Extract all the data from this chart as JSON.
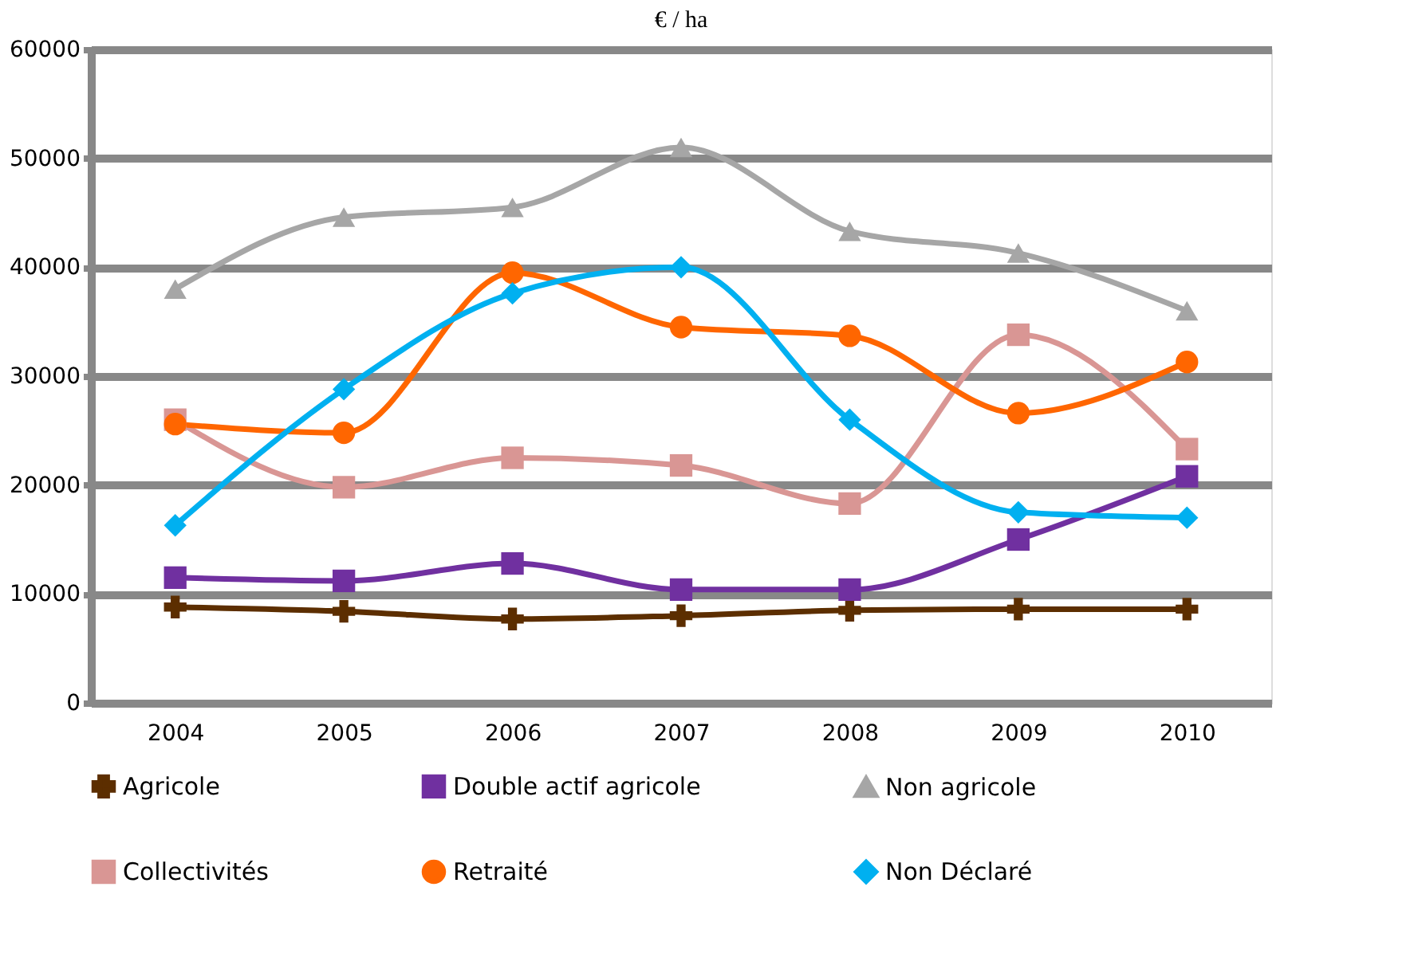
{
  "chart_data": {
    "type": "line",
    "title": "€ / ha",
    "categories": [
      "2004",
      "2005",
      "2006",
      "2007",
      "2008",
      "2009",
      "2010"
    ],
    "series": [
      {
        "name": "Agricole",
        "color": "#5c2e00",
        "marker": "cross",
        "values": [
          8800,
          8400,
          7700,
          8000,
          8500,
          8600,
          8600
        ]
      },
      {
        "name": "Double actif agricole",
        "color": "#7030a0",
        "marker": "square",
        "values": [
          11500,
          11200,
          12800,
          10400,
          10400,
          15000,
          20800
        ]
      },
      {
        "name": "Non agricole",
        "color": "#a6a6a6",
        "marker": "triangle",
        "values": [
          38000,
          44600,
          45500,
          51000,
          43300,
          41300,
          36000
        ]
      },
      {
        "name": "Collectivités",
        "color": "#d99694",
        "marker": "square",
        "values": [
          26000,
          19800,
          22500,
          21800,
          18300,
          33800,
          23300
        ]
      },
      {
        "name": "Retraité",
        "color": "#ff6600",
        "marker": "circle",
        "values": [
          25600,
          24800,
          39500,
          34500,
          33700,
          26600,
          31300
        ]
      },
      {
        "name": "Non Déclaré",
        "color": "#00b0f0",
        "marker": "diamond",
        "values": [
          16300,
          28800,
          37600,
          40000,
          26000,
          17500,
          17000
        ]
      }
    ],
    "ylim": [
      0,
      60000
    ],
    "yticks": [
      0,
      10000,
      20000,
      30000,
      40000,
      50000,
      60000
    ],
    "grid": "y",
    "legend": "bottom",
    "line_style": "solid"
  }
}
